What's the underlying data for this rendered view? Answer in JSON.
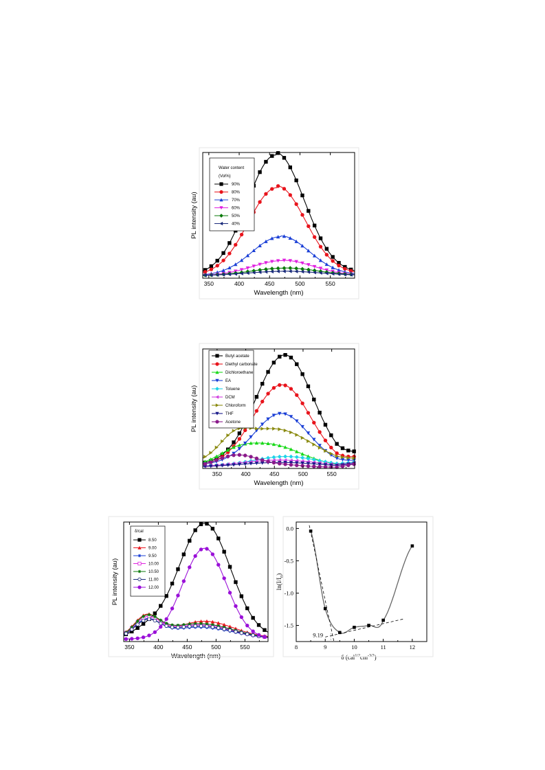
{
  "chart_data": [
    {
      "type": "line",
      "xlabel": "Wavelength (nm)",
      "ylabel": "PL intensity (au)",
      "xlim": [
        340,
        590
      ],
      "ylim": [
        0,
        100
      ],
      "x_ticks": [
        "350",
        "400",
        "450",
        "500",
        "550"
      ],
      "legend": {
        "title_line1": "Water content",
        "title_line2": "(Vol%)",
        "position": "top-left"
      },
      "series": [
        {
          "name": "90%",
          "color": "#000000",
          "marker": "square",
          "peak": 460,
          "height": 96,
          "width": 47
        },
        {
          "name": "80%",
          "color": "#e8141c",
          "marker": "circle",
          "peak": 462,
          "height": 70,
          "width": 47
        },
        {
          "name": "70%",
          "color": "#1a3fd6",
          "marker": "triangle-up",
          "peak": 468,
          "height": 31,
          "width": 47
        },
        {
          "name": "60%",
          "color": "#e020e0",
          "marker": "triangle-down",
          "peak": 472,
          "height": 12,
          "width": 50
        },
        {
          "name": "50%",
          "color": "#0a7a0a",
          "marker": "diamond",
          "peak": 475,
          "height": 6,
          "width": 55
        },
        {
          "name": "40%",
          "color": "#1a2a7a",
          "marker": "triangle-left",
          "peak": 475,
          "height": 3.5,
          "width": 60
        }
      ]
    },
    {
      "type": "line",
      "xlabel": "Wavelength (nm)",
      "ylabel": "PL intensity (au)",
      "xlim": [
        325,
        590
      ],
      "ylim": [
        0,
        100
      ],
      "x_ticks": [
        "350",
        "400",
        "450",
        "500",
        "550"
      ],
      "legend": {
        "position": "top-left"
      },
      "series": [
        {
          "name": "Butyl acetate",
          "color": "#000000",
          "marker": "square"
        },
        {
          "name": "Diethyl carbonate",
          "color": "#e8141c",
          "marker": "circle"
        },
        {
          "name": "Dichloroethane",
          "color": "#19d919",
          "marker": "triangle-up"
        },
        {
          "name": "EA",
          "color": "#1a3fd6",
          "marker": "triangle-down"
        },
        {
          "name": "Toluene",
          "color": "#1fd3e8",
          "marker": "diamond"
        },
        {
          "name": "DCM",
          "color": "#d040e0",
          "marker": "triangle-left"
        },
        {
          "name": "Chloroform",
          "color": "#8a8a10",
          "marker": "triangle-right"
        },
        {
          "name": "THF",
          "color": "#1a1a8a",
          "marker": "triangle-down"
        },
        {
          "name": "Acetone",
          "color": "#8a1a8a",
          "marker": "circle"
        }
      ]
    },
    {
      "type": "line",
      "xlabel": "Wavelength (nm)",
      "ylabel": "PL intensity (au)",
      "xlim": [
        340,
        590
      ],
      "ylim": [
        0,
        100
      ],
      "x_ticks": [
        "350",
        "400",
        "450",
        "500",
        "550"
      ],
      "legend": {
        "title": "δ/cal",
        "position": "top-left"
      },
      "series": [
        {
          "name": "8.50",
          "color": "#000000",
          "marker": "square"
        },
        {
          "name": "9.00",
          "color": "#e8141c",
          "marker": "triangle-up"
        },
        {
          "name": "9.50",
          "color": "#1a3fd6",
          "marker": "star"
        },
        {
          "name": "10.00",
          "color": "#e020e0",
          "marker": "open-square"
        },
        {
          "name": "10.50",
          "color": "#0a7a0a",
          "marker": "star"
        },
        {
          "name": "11.00",
          "color": "#1a2a7a",
          "marker": "open-circle"
        },
        {
          "name": "12.00",
          "color": "#9a10d8",
          "marker": "circle"
        }
      ]
    },
    {
      "type": "scatter",
      "xlabel": "δ (cal",
      "ylabel": "ln(I/I",
      "xlim": [
        8,
        12.5
      ],
      "ylim": [
        -1.75,
        0.1
      ],
      "x_ticks": [
        "8",
        "9",
        "10",
        "11",
        "12"
      ],
      "y_ticks": [
        "0.0",
        "-0.5",
        "-1.0",
        "-1.5"
      ],
      "points": [
        {
          "x": 8.5,
          "y": -0.04
        },
        {
          "x": 9.0,
          "y": -1.24
        },
        {
          "x": 9.5,
          "y": -1.61
        },
        {
          "x": 10.0,
          "y": -1.53
        },
        {
          "x": 10.5,
          "y": -1.5
        },
        {
          "x": 11.0,
          "y": -1.42
        },
        {
          "x": 12.0,
          "y": -0.27
        }
      ],
      "annotation": "9.19"
    }
  ]
}
